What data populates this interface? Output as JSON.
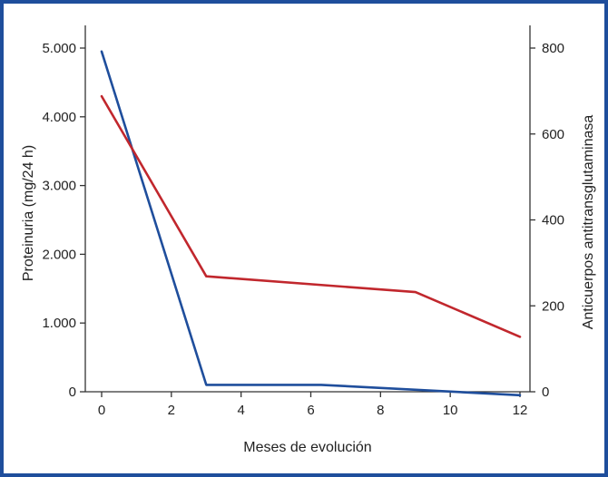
{
  "chart_data": {
    "type": "line",
    "title": "",
    "xlabel": "Meses de evolución",
    "ylabel_left": "Proteinuria (mg/24 h)",
    "ylabel_right": "Anticuerpos antitransglutaminasa",
    "xlim": [
      0,
      12
    ],
    "ylim_left": [
      0,
      5000
    ],
    "ylim_right": [
      0,
      800
    ],
    "x_ticks": [
      "0",
      "2",
      "4",
      "6",
      "8",
      "10",
      "12"
    ],
    "y_left_ticks": [
      "0",
      "1.000",
      "2.000",
      "3.000",
      "4.000",
      "5.000"
    ],
    "y_right_ticks": [
      "0",
      "200",
      "400",
      "600",
      "800"
    ],
    "grid": false,
    "series": [
      {
        "axis": "left",
        "color": "#1f4e9c",
        "x": [
          0,
          3,
          6.3,
          12
        ],
        "y": [
          4950,
          100,
          100,
          -50
        ]
      },
      {
        "axis": "left",
        "color": "#c1272d",
        "x": [
          0,
          3,
          9,
          12
        ],
        "y": [
          4300,
          1680,
          1450,
          800
        ]
      }
    ]
  }
}
